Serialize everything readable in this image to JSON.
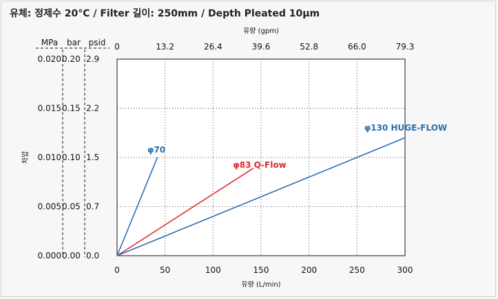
{
  "title": "유체: 정제수 20°C  /  Filter 길이: 250mm / Depth Pleated 10μm",
  "chart_data": {
    "type": "line",
    "xlabel": "유량 (L/min)",
    "x2label": "유량 (gpm)",
    "ylabel": "차압",
    "xlim": [
      0,
      300
    ],
    "ylim": [
      0,
      0.02
    ],
    "grid": true,
    "x_ticks": [
      "0",
      "50",
      "100",
      "150",
      "200",
      "250",
      "300"
    ],
    "x_tick_values": [
      0,
      50,
      100,
      150,
      200,
      250,
      300
    ],
    "x2_ticks": [
      "0",
      "13.2",
      "26.4",
      "39.6",
      "52.8",
      "66.0",
      "79.3"
    ],
    "y_tick_values": [
      0,
      0.005,
      0.01,
      0.015,
      0.02
    ],
    "y_axes": [
      {
        "unit": "MPa",
        "color": "#111111",
        "ticks": [
          "0.000",
          "0.005",
          "0.010",
          "0.015",
          "0.020"
        ]
      },
      {
        "unit": "bar",
        "color": "#e07a2e",
        "ticks": [
          "0.00",
          "0.05",
          "0.10",
          "0.15",
          "0.20"
        ]
      },
      {
        "unit": "psid",
        "color": "#2aa3c8",
        "ticks": [
          "0.0",
          "0.7",
          "1.5",
          "2.2",
          "2.9"
        ]
      }
    ],
    "series": [
      {
        "name": "φ70",
        "color": "#2a6db3",
        "x": [
          0,
          42
        ],
        "y": [
          0,
          0.01
        ]
      },
      {
        "name": "φ83 Q-Flow",
        "color": "#e0282e",
        "x": [
          0,
          142
        ],
        "y": [
          0,
          0.0089
        ]
      },
      {
        "name": "φ130 HUGE-FLOW",
        "color": "#2a6db3",
        "x": [
          0,
          300
        ],
        "y": [
          0,
          0.012
        ]
      }
    ]
  }
}
